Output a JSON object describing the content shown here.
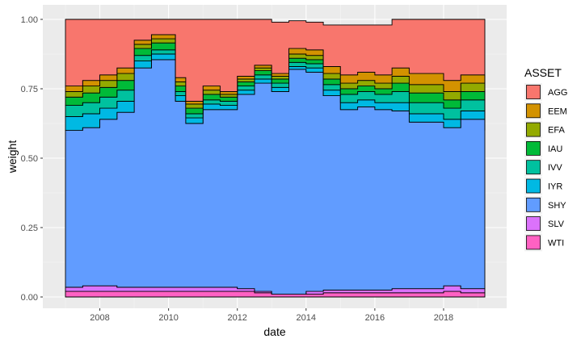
{
  "chart_data": {
    "type": "area",
    "stacked": true,
    "xlabel": "date",
    "ylabel": "weight",
    "xlim": [
      2007.0,
      2019.2
    ],
    "ylim": [
      0,
      1
    ],
    "x_ticks": [
      2008,
      2010,
      2012,
      2014,
      2016,
      2018
    ],
    "x_tick_labels": [
      "2008",
      "2010",
      "2012",
      "2014",
      "2016",
      "2018"
    ],
    "y_ticks": [
      0,
      0.25,
      0.5,
      0.75,
      1.0
    ],
    "y_tick_labels": [
      "0.00",
      "0.25",
      "0.50",
      "0.75",
      "1.00"
    ],
    "grid": true,
    "legend": {
      "title": "ASSET",
      "position": "right"
    },
    "stack_order_bottom_to_top": [
      "WTI",
      "SLV",
      "SHY",
      "IYR",
      "IVV",
      "IAU",
      "EFA",
      "EEM",
      "AGG"
    ],
    "x": [
      2007.0,
      2007.5,
      2008.0,
      2008.5,
      2009.0,
      2009.5,
      2009.85,
      2010.2,
      2010.5,
      2011.0,
      2011.5,
      2012.0,
      2012.5,
      2013.0,
      2013.5,
      2014.0,
      2014.5,
      2015.0,
      2015.5,
      2016.0,
      2016.5,
      2017.0,
      2017.5,
      2018.0,
      2018.5,
      2019.0,
      2019.2
    ],
    "series": [
      {
        "name": "WTI",
        "color": "#FF61C3",
        "values": [
          0.02,
          0.02,
          0.02,
          0.02,
          0.02,
          0.02,
          0.02,
          0.02,
          0.02,
          0.02,
          0.02,
          0.02,
          0.015,
          0.01,
          0.01,
          0.01,
          0.015,
          0.015,
          0.015,
          0.015,
          0.015,
          0.015,
          0.015,
          0.02,
          0.015,
          0.015,
          0.015
        ]
      },
      {
        "name": "SLV",
        "color": "#DB72FB",
        "values": [
          0.015,
          0.02,
          0.02,
          0.015,
          0.015,
          0.015,
          0.015,
          0.015,
          0.015,
          0.015,
          0.015,
          0.01,
          0.005,
          0.0,
          0.0,
          0.01,
          0.01,
          0.01,
          0.01,
          0.01,
          0.015,
          0.015,
          0.015,
          0.02,
          0.015,
          0.015,
          0.015
        ]
      },
      {
        "name": "SHY",
        "color": "#619CFF",
        "values": [
          0.565,
          0.57,
          0.6,
          0.63,
          0.79,
          0.82,
          0.82,
          0.67,
          0.59,
          0.64,
          0.64,
          0.7,
          0.75,
          0.73,
          0.81,
          0.79,
          0.7,
          0.65,
          0.66,
          0.65,
          0.64,
          0.6,
          0.6,
          0.57,
          0.61,
          0.61,
          0.57
        ]
      },
      {
        "name": "IYR",
        "color": "#00B9E3",
        "values": [
          0.05,
          0.05,
          0.04,
          0.04,
          0.025,
          0.02,
          0.02,
          0.02,
          0.02,
          0.02,
          0.015,
          0.015,
          0.015,
          0.015,
          0.01,
          0.015,
          0.02,
          0.025,
          0.025,
          0.025,
          0.03,
          0.03,
          0.03,
          0.03,
          0.03,
          0.03,
          0.03
        ]
      },
      {
        "name": "IVV",
        "color": "#00C19F",
        "values": [
          0.04,
          0.04,
          0.04,
          0.04,
          0.02,
          0.015,
          0.015,
          0.015,
          0.015,
          0.015,
          0.015,
          0.015,
          0.015,
          0.015,
          0.015,
          0.015,
          0.02,
          0.03,
          0.03,
          0.03,
          0.04,
          0.04,
          0.04,
          0.04,
          0.04,
          0.04,
          0.04
        ]
      },
      {
        "name": "IAU",
        "color": "#00BA38",
        "values": [
          0.03,
          0.035,
          0.035,
          0.035,
          0.025,
          0.025,
          0.025,
          0.02,
          0.02,
          0.02,
          0.015,
          0.015,
          0.015,
          0.015,
          0.015,
          0.015,
          0.02,
          0.02,
          0.02,
          0.02,
          0.03,
          0.035,
          0.035,
          0.03,
          0.03,
          0.03,
          0.03
        ]
      },
      {
        "name": "EFA",
        "color": "#93AA00",
        "values": [
          0.02,
          0.025,
          0.025,
          0.025,
          0.015,
          0.015,
          0.015,
          0.015,
          0.015,
          0.015,
          0.01,
          0.01,
          0.01,
          0.01,
          0.015,
          0.015,
          0.02,
          0.02,
          0.02,
          0.02,
          0.025,
          0.03,
          0.03,
          0.03,
          0.03,
          0.03,
          0.03
        ]
      },
      {
        "name": "EEM",
        "color": "#D39200",
        "values": [
          0.02,
          0.02,
          0.02,
          0.02,
          0.015,
          0.015,
          0.015,
          0.015,
          0.01,
          0.015,
          0.01,
          0.01,
          0.01,
          0.01,
          0.02,
          0.02,
          0.025,
          0.03,
          0.03,
          0.03,
          0.03,
          0.04,
          0.04,
          0.04,
          0.03,
          0.03,
          0.03
        ]
      },
      {
        "name": "AGG",
        "color": "#F8766D",
        "values": [
          0.24,
          0.22,
          0.2,
          0.175,
          0.075,
          0.055,
          0.055,
          0.21,
          0.295,
          0.24,
          0.26,
          0.205,
          0.165,
          0.185,
          0.1,
          0.1,
          0.15,
          0.18,
          0.17,
          0.18,
          0.175,
          0.195,
          0.195,
          0.22,
          0.2,
          0.2,
          0.24
        ]
      }
    ]
  }
}
